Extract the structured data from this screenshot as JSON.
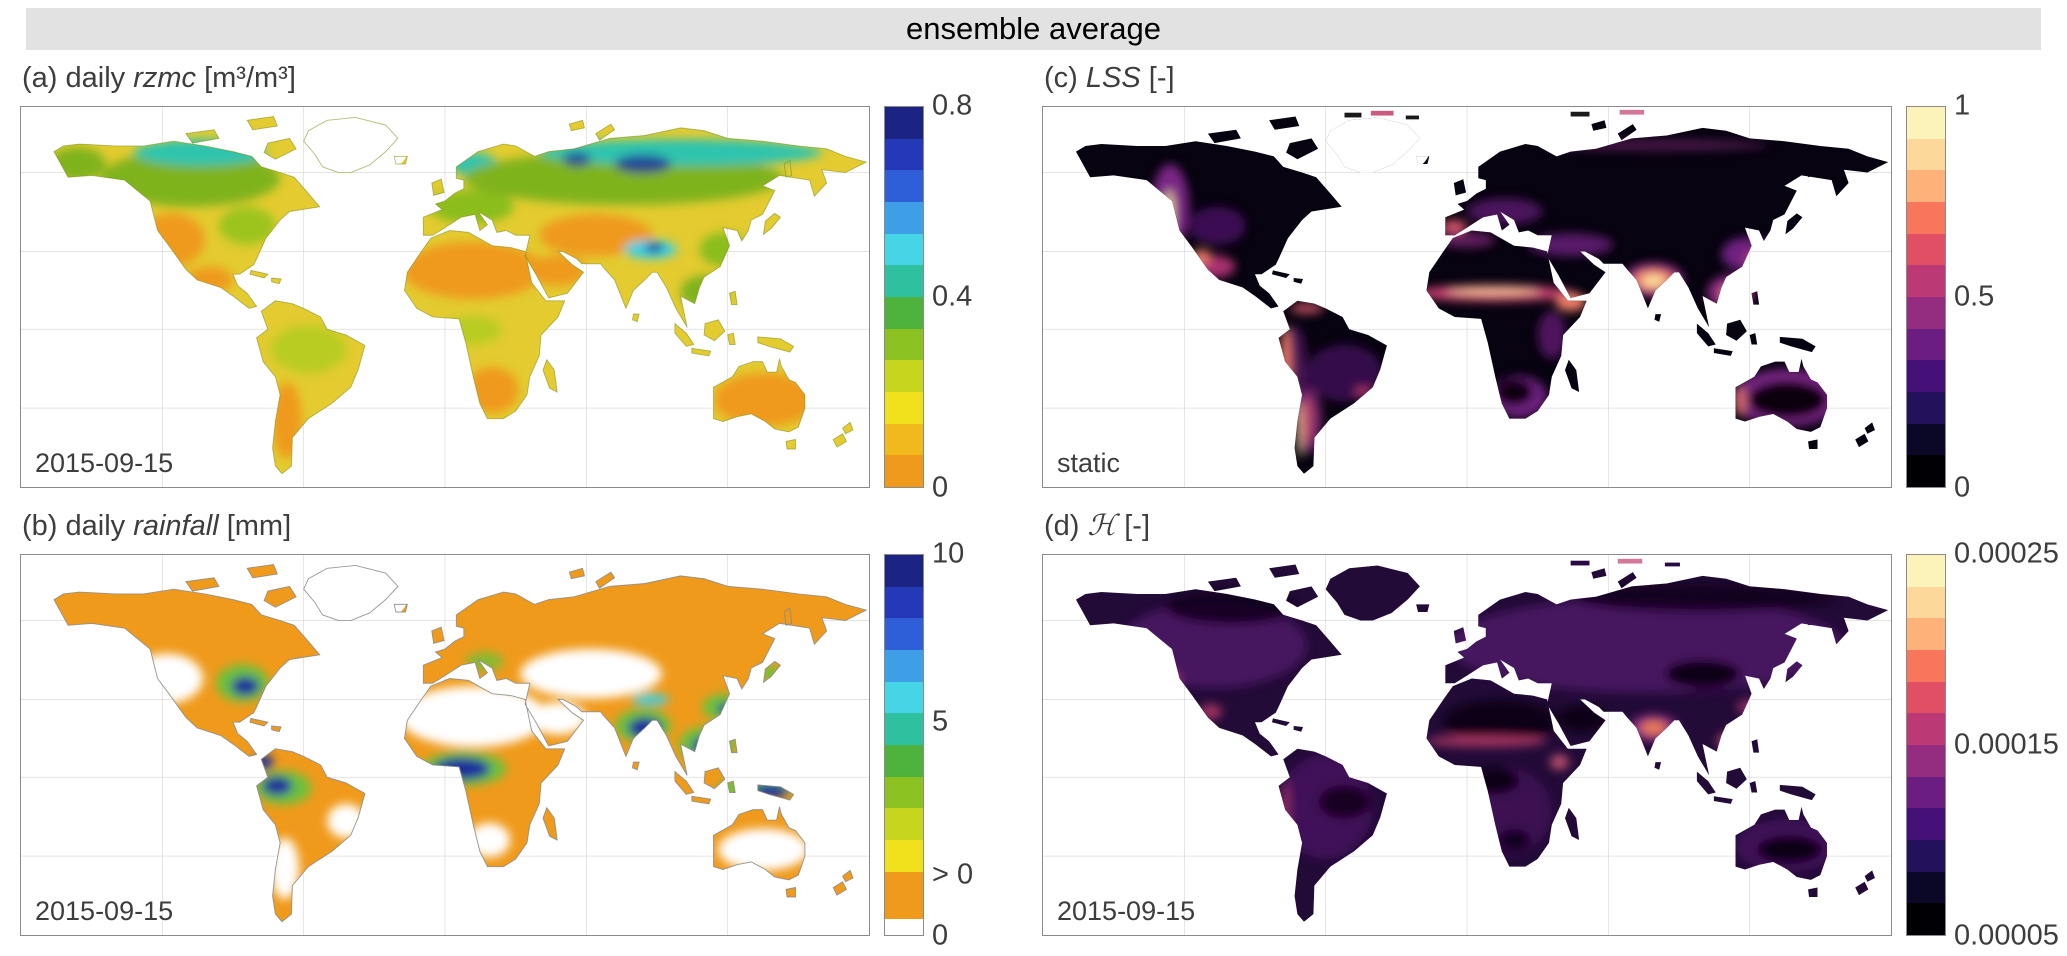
{
  "banner": {
    "title": "ensemble average"
  },
  "panels": [
    {
      "id": "a",
      "title_prefix": "(a) daily ",
      "title_term": "rzmc",
      "title_suffix": " [m³/m³]",
      "corner_label": "2015-09-15",
      "colorbar": {
        "colors": [
          "#1b2383",
          "#2438b8",
          "#2f5fd8",
          "#3f9fe6",
          "#45d5e6",
          "#2fc0a0",
          "#4db33c",
          "#8cc122",
          "#c6d51e",
          "#f0e11c",
          "#f2b91d",
          "#ef9a1b"
        ],
        "ticks": [
          {
            "label": "0.8",
            "pos": "0%"
          },
          {
            "label": "0.4",
            "pos": "50%"
          },
          {
            "label": "0",
            "pos": "100%"
          }
        ]
      }
    },
    {
      "id": "b",
      "title_prefix": "(b) daily ",
      "title_term": "rainfall",
      "title_suffix": " [mm]",
      "corner_label": "2015-09-15",
      "colorbar": {
        "colors": [
          "#1b2383",
          "#2438b8",
          "#2f5fd8",
          "#3f9fe6",
          "#45d5e6",
          "#2fc0a0",
          "#4db33c",
          "#8cc122",
          "#c6d51e",
          "#f0e11c",
          "#ef9a1b",
          "#ffffff"
        ],
        "weights": [
          1,
          1,
          1,
          1,
          1,
          1,
          1,
          1,
          1,
          1,
          1.5,
          0.5
        ],
        "ticks": [
          {
            "label": "10",
            "pos": "0%"
          },
          {
            "label": "5",
            "pos": "44%"
          },
          {
            "label": "> 0",
            "pos": "84%"
          },
          {
            "label": "0",
            "pos": "100%"
          }
        ]
      }
    },
    {
      "id": "c",
      "title_prefix": "(c) ",
      "title_term": "LSS",
      "title_suffix": " [-]",
      "corner_label": "static",
      "colorbar": {
        "colors": [
          "#fbf3b9",
          "#fdd89b",
          "#fdb27a",
          "#f8765c",
          "#e14f64",
          "#bb3a76",
          "#942c80",
          "#6b1d81",
          "#451077",
          "#24115c",
          "#0b0726",
          "#000004"
        ],
        "ticks": [
          {
            "label": "1",
            "pos": "0%"
          },
          {
            "label": "0.5",
            "pos": "50%"
          },
          {
            "label": "0",
            "pos": "100%"
          }
        ]
      }
    },
    {
      "id": "d",
      "title_prefix": "(d) ",
      "title_term": "ℋ",
      "title_suffix": " [-]",
      "corner_label": "2015-09-15",
      "colorbar": {
        "colors": [
          "#fbf3b9",
          "#fdd89b",
          "#fdb27a",
          "#f8765c",
          "#e14f64",
          "#bb3a76",
          "#942c80",
          "#6b1d81",
          "#451077",
          "#24115c",
          "#0b0726",
          "#000004"
        ],
        "ticks": [
          {
            "label": "0.00025",
            "pos": "0%"
          },
          {
            "label": "0.00015",
            "pos": "50%"
          },
          {
            "label": "0.00005",
            "pos": "100%"
          }
        ]
      }
    }
  ],
  "chart_data": [
    {
      "type": "heatmap",
      "subtype": "global map",
      "title": "(a) daily rzmc [m³/m³]",
      "date_label": "2015-09-15",
      "colorbar_range": [
        0,
        0.8
      ],
      "colorbar_ticks": [
        0,
        0.4,
        0.8
      ],
      "colormap": "orange→yellow→green→cyan→blue→navy (low to high)",
      "grid": true,
      "legend_position": "right colorbar",
      "pattern": "Arid regions (Sahara, Arabia, central Asia, Australia, SW USA, Patagonia) low/orange-yellow; boreal Canada and Siberia green-cyan; wettest patches dark blue; Greenland interior no data"
    },
    {
      "type": "heatmap",
      "subtype": "global map",
      "title": "(b) daily rainfall [mm]",
      "date_label": "2015-09-15",
      "colorbar_range": [
        0,
        10
      ],
      "colorbar_ticks": [
        0,
        5,
        10
      ],
      "colorbar_special_tick": "> 0",
      "colormap": "white(0)→orange(>0)→yellow→green→cyan→blue→navy(10)",
      "grid": true,
      "legend_position": "right colorbar",
      "pattern": "Most land light orange (>0); deserts white (0); heavy rain (blue/navy) over ITCZ Africa, India/Bay of Bengal, SE Asia, Indonesia, NW Amazon and eastern USA; Greenland outlined white"
    },
    {
      "type": "heatmap",
      "subtype": "global map",
      "title": "(c) LSS [-]",
      "date_label": "static",
      "colorbar_range": [
        0,
        1
      ],
      "colorbar_ticks": [
        0,
        0.5,
        1
      ],
      "colormap": "magma: black(0)→purple→magenta→pink→cream(1)",
      "grid": true,
      "legend_position": "right colorbar",
      "pattern": "Continental interiors near 0 (black); high values (pink/cream) along western coasts, Sahel band, India, SE Asia, Mexico, Andes coast and Australian coastal fringe; Greenland mostly missing"
    },
    {
      "type": "heatmap",
      "subtype": "global map",
      "title": "(d) ℋ [-]",
      "date_label": "2015-09-15",
      "colorbar_range": [
        5e-05,
        0.00025
      ],
      "colorbar_ticks": [
        5e-05,
        0.00015,
        0.00025
      ],
      "colormap": "magma: black(low)→purple→magenta→pink→cream(high)",
      "grid": true,
      "legend_position": "right colorbar",
      "pattern": "Mostly dark purple; darkest over Sahara, Arabia, central Australia and Congo; brighter magenta/orange hotspots over India, Sahel, Mexico, East Africa and SE Asia"
    }
  ]
}
